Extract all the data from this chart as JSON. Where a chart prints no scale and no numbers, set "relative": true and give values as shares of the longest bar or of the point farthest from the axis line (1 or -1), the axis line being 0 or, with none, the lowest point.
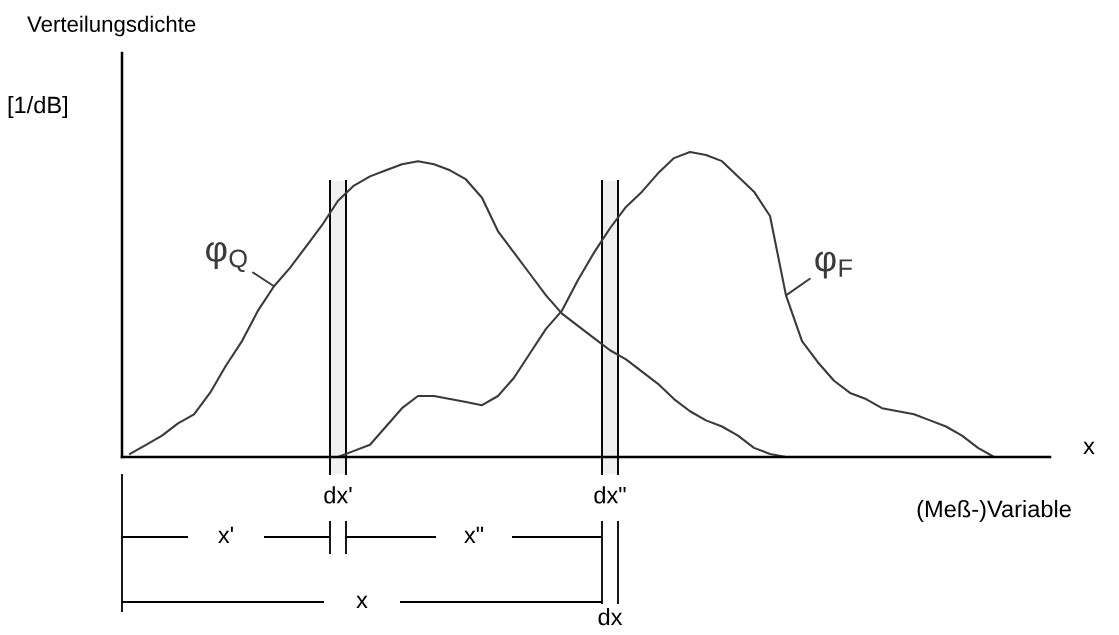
{
  "chart_data": {
    "type": "line",
    "relative": true,
    "categories": [
      null,
      null,
      null,
      null,
      null,
      null,
      null,
      null,
      null,
      null,
      null,
      null,
      null,
      "dx'",
      null,
      null,
      null,
      null,
      null,
      null,
      null,
      null,
      null,
      null,
      null,
      null,
      null,
      null,
      null,
      null,
      "dx\"",
      null,
      null,
      null,
      null,
      null,
      null,
      null,
      null,
      null,
      null,
      null,
      null,
      null,
      null,
      null,
      null,
      null,
      null,
      null,
      null,
      null,
      null,
      null,
      null,
      null,
      null,
      null
    ],
    "series": [
      {
        "name": "φ$_{Q}$",
        "color": "#3a3a3a",
        "values": [
          0.01,
          0.04,
          0.07,
          0.11,
          0.14,
          0.21,
          0.3,
          0.38,
          0.48,
          0.56,
          0.62,
          0.69,
          0.76,
          0.84,
          0.89,
          0.92,
          0.94,
          0.96,
          0.97,
          0.96,
          0.94,
          0.91,
          0.85,
          0.74,
          0.67,
          0.6,
          0.53,
          0.47,
          0.43,
          0.39,
          0.35,
          0.32,
          0.28,
          0.24,
          0.19,
          0.15,
          0.12,
          0.1,
          0.07,
          0.03,
          0.01,
          0,
          null,
          null,
          null,
          null,
          null,
          null,
          null,
          null,
          null,
          null,
          null,
          null,
          null,
          null,
          null,
          null
        ]
      },
      {
        "name": "φ$_{F}$",
        "color": "#3a3a3a",
        "values": [
          null,
          null,
          null,
          null,
          null,
          null,
          null,
          null,
          null,
          null,
          null,
          null,
          null,
          0,
          0.02,
          0.04,
          0.1,
          0.16,
          0.2,
          0.2,
          0.19,
          0.18,
          0.17,
          0.2,
          0.26,
          0.34,
          0.42,
          0.48,
          0.58,
          0.67,
          0.75,
          0.82,
          0.87,
          0.93,
          0.98,
          1,
          0.99,
          0.97,
          0.92,
          0.87,
          0.79,
          0.53,
          0.38,
          0.31,
          0.25,
          0.21,
          0.19,
          0.16,
          0.15,
          0.14,
          0.12,
          0.1,
          0.07,
          0.03,
          0,
          null,
          null,
          null
        ]
      }
    ],
    "xlabel": "(Meß-)Variable",
    "annotations": [
      "Verteilungsdichte",
      "[1/dB]",
      "x",
      "x'",
      "x\"",
      "x",
      "dx"
    ],
    "bands": [
      {
        "axis": "x",
        "from": "dx'",
        "to": "dx'",
        "color": "#f0f0f0"
      },
      {
        "axis": "x",
        "from": "dx\"",
        "to": "dx\"",
        "color": "#f0f0f0"
      }
    ]
  }
}
